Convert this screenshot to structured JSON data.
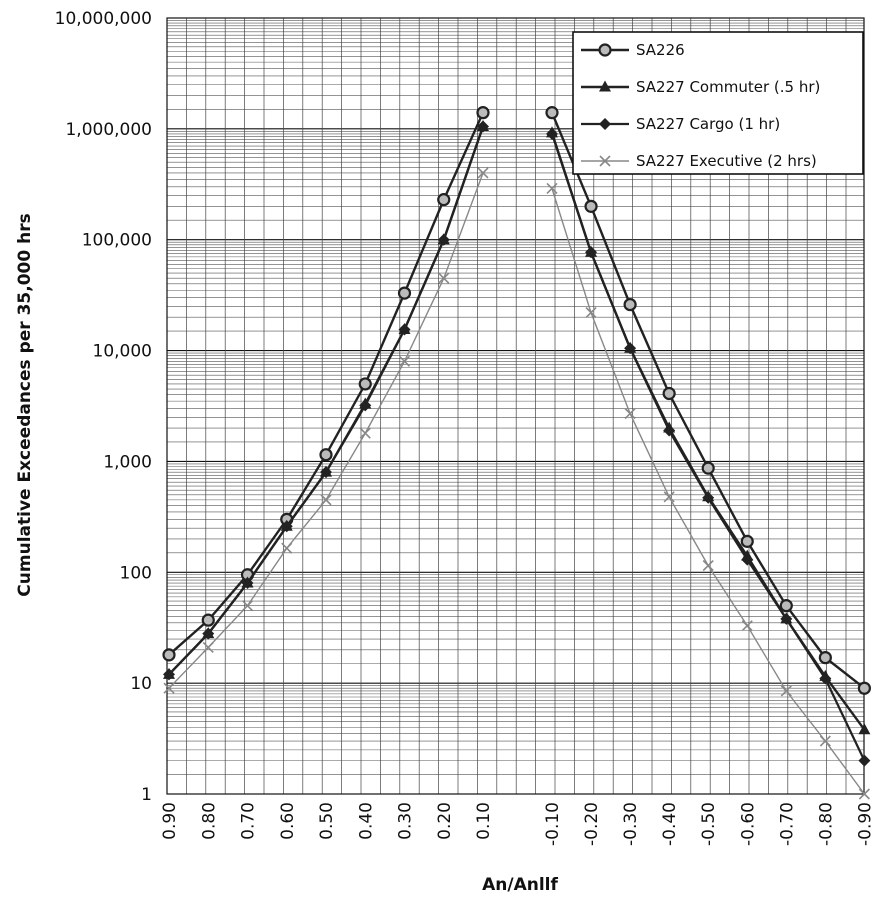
{
  "chart_data": {
    "type": "line",
    "xlabel": "An/Anllf",
    "ylabel": "Cumulative Exceedances per 35,000 hrs",
    "yscale": "log",
    "ylim": [
      1,
      10000000
    ],
    "grid": true,
    "legend_position": "top-right",
    "y_tick_labels": [
      "1",
      "10",
      "100",
      "1,000",
      "10,000",
      "100,000",
      "1,000,000",
      "10,000,000"
    ],
    "categories": [
      "0.90",
      "0.80",
      "0.70",
      "0.60",
      "0.50",
      "0.40",
      "0.30",
      "0.20",
      "0.10",
      "-0.10",
      "-0.20",
      "-0.30",
      "-0.40",
      "-0.50",
      "-0.60",
      "-0.70",
      "-0.80",
      "-0.90"
    ],
    "series": [
      {
        "name": "SA226",
        "marker": "circle",
        "color": "#222222",
        "values": [
          18,
          37,
          95,
          300,
          1150,
          5000,
          33000,
          230000,
          1400000,
          1400000,
          200000,
          26000,
          4100,
          870,
          190,
          50,
          17,
          9
        ]
      },
      {
        "name": "SA227 Commuter (.5 hr)",
        "marker": "triangle",
        "color": "#222222",
        "values": [
          12,
          28,
          80,
          260,
          800,
          3300,
          15500,
          100000,
          1050000,
          920000,
          77000,
          10500,
          2000,
          480,
          140,
          38,
          11.5,
          3.8
        ]
      },
      {
        "name": "SA227 Cargo (1 hr)",
        "marker": "diamond",
        "color": "#222222",
        "values": [
          12,
          28,
          80,
          260,
          800,
          3200,
          15500,
          100000,
          1050000,
          900000,
          77000,
          10500,
          1900,
          470,
          130,
          38,
          11,
          2
        ]
      },
      {
        "name": "SA227 Executive (2 hrs)",
        "marker": "x",
        "color": "#888888",
        "values": [
          9,
          21,
          50,
          165,
          450,
          1800,
          8000,
          45000,
          400000,
          290000,
          22000,
          2700,
          480,
          115,
          33,
          8.5,
          3,
          1
        ]
      }
    ]
  }
}
